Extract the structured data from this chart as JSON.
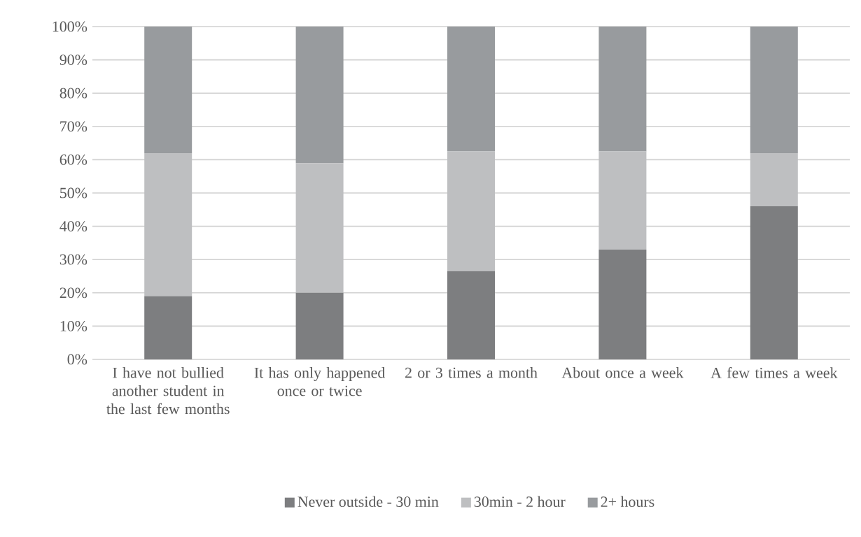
{
  "chart_data": {
    "type": "bar",
    "stacked": true,
    "categories": [
      "I have not bullied another student in the last few months",
      "It has only happened once or twice",
      "2 or 3 times a month",
      "About once a week",
      "A few times a week"
    ],
    "series": [
      {
        "name": "Never outside - 30 min",
        "color": "#7d7e80",
        "values": [
          19,
          20,
          26.5,
          33,
          46
        ]
      },
      {
        "name": "30min - 2 hour",
        "color": "#bebfc1",
        "values": [
          43,
          39,
          36,
          29.5,
          16
        ]
      },
      {
        "name": "2+ hours",
        "color": "#989b9e",
        "values": [
          38,
          41,
          37.5,
          37.5,
          38
        ]
      }
    ],
    "ylim": [
      0,
      100
    ],
    "yticks": [
      {
        "value": 0,
        "label": "0%"
      },
      {
        "value": 10,
        "label": "10%"
      },
      {
        "value": 20,
        "label": "20%"
      },
      {
        "value": 30,
        "label": "30%"
      },
      {
        "value": 40,
        "label": "40%"
      },
      {
        "value": 50,
        "label": "50%"
      },
      {
        "value": 60,
        "label": "60%"
      },
      {
        "value": 70,
        "label": "70%"
      },
      {
        "value": 80,
        "label": "80%"
      },
      {
        "value": 90,
        "label": "90%"
      },
      {
        "value": 100,
        "label": "100%"
      }
    ],
    "grid": "y",
    "legend": "bottom"
  }
}
